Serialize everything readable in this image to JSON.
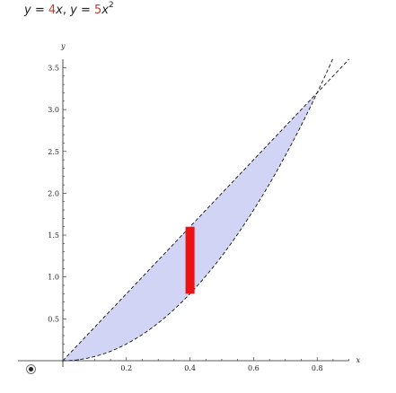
{
  "title": {
    "y1": "y",
    "eq1": " = ",
    "coef1": "4",
    "x1": "x",
    "sep": ",  ",
    "y2": "y",
    "eq2": " = ",
    "coef2": "5",
    "x2": "x",
    "exp2": "2"
  },
  "colors": {
    "fill": "#d1d4f4",
    "curve": "#111111",
    "slice": "#ee1111",
    "axis": "#222222"
  },
  "chart_data": {
    "type": "area",
    "title": "",
    "xlabel": "x",
    "ylabel": "y",
    "xlim": [
      0,
      0.9
    ],
    "ylim": [
      0,
      3.6
    ],
    "x_ticks": [
      0.2,
      0.4,
      0.6,
      0.8
    ],
    "x_tick_labels": [
      "0.2",
      "0.4",
      "0.6",
      "0.8"
    ],
    "y_ticks": [
      0.5,
      1.0,
      1.5,
      2.0,
      2.5,
      3.0,
      3.5
    ],
    "y_tick_labels": [
      "0.5",
      "1.0",
      "1.5",
      "2.0",
      "2.5",
      "3.0",
      "3.5"
    ],
    "series": [
      {
        "expression": "4x",
        "style": "dashed",
        "x_range": [
          0,
          0.9
        ]
      },
      {
        "expression": "5x^2",
        "style": "dashed",
        "x_range": [
          0,
          0.85
        ]
      }
    ],
    "shaded_region": {
      "between": [
        "4x",
        "5x^2"
      ],
      "x_range": [
        0,
        0.8
      ]
    },
    "highlight_slice": {
      "x": 0.4,
      "y_low": 0.8,
      "y_high": 1.6
    },
    "grid": false,
    "legend": "none"
  }
}
